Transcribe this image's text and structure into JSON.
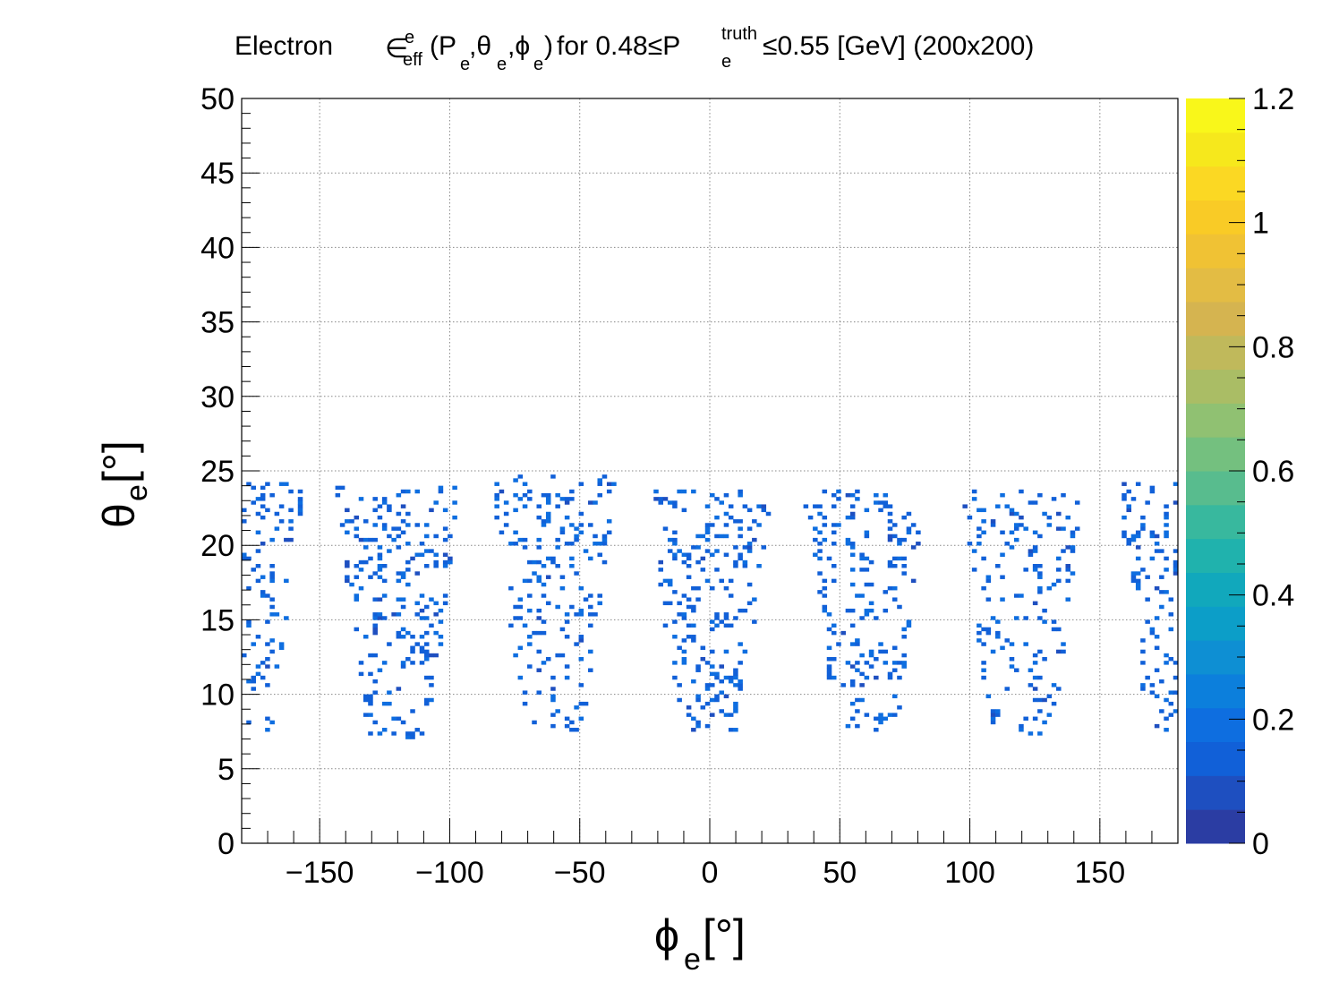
{
  "chart_data": {
    "type": "heatmap",
    "title": {
      "prefix": "Electron",
      "symbol": "∈",
      "sup1": "e",
      "sub1": "eff",
      "args_open": "(P",
      "args_sub_p": "e",
      "args_theta": ",θ",
      "args_sub_theta": "e",
      "args_phi": ",ϕ",
      "args_sub_phi": "e",
      "args_close": ")",
      "range_text": " for 0.48≤P",
      "range_sup": "truth",
      "range_sub": "e",
      "range_tail": "≤0.55 [GeV] (200x200)"
    },
    "xlabel": {
      "symbol": "ϕ",
      "sub": "e",
      "unit": " [°]"
    },
    "ylabel": {
      "symbol": "θ",
      "sub": "e",
      "unit": " [°]"
    },
    "xlim": [
      -180,
      180
    ],
    "ylim": [
      0,
      50
    ],
    "zlim": [
      0,
      1.2
    ],
    "bins": [
      200,
      200
    ],
    "grid": true,
    "x_ticks": [
      "−150",
      "−100",
      "−50",
      "0",
      "50",
      "100",
      "150"
    ],
    "x_tick_values": [
      -150,
      -100,
      -50,
      0,
      50,
      100,
      150
    ],
    "y_ticks": [
      "0",
      "5",
      "10",
      "15",
      "20",
      "25",
      "30",
      "35",
      "40",
      "45",
      "50"
    ],
    "y_tick_values": [
      0,
      5,
      10,
      15,
      20,
      25,
      30,
      35,
      40,
      45,
      50
    ],
    "z_ticks": [
      "0",
      "0.2",
      "0.4",
      "0.6",
      "0.8",
      "1",
      "1.2"
    ],
    "z_tick_values": [
      0,
      0.2,
      0.4,
      0.6,
      0.8,
      1.0,
      1.2
    ],
    "sectors": [
      {
        "phi_center": -120,
        "phi_halfwidth": 24,
        "theta_min": 7.0,
        "theta_max": 24.0
      },
      {
        "phi_center": -60,
        "phi_halfwidth": 24,
        "theta_min": 7.4,
        "theta_max": 24.7
      },
      {
        "phi_center": 0,
        "phi_halfwidth": 24,
        "theta_min": 7.4,
        "theta_max": 24.0
      },
      {
        "phi_center": 60,
        "phi_halfwidth": 24,
        "theta_min": 7.6,
        "theta_max": 23.8
      },
      {
        "phi_center": 120,
        "phi_halfwidth": 24,
        "theta_min": 7.2,
        "theta_max": 23.8
      },
      {
        "phi_center": 180,
        "phi_halfwidth": 24,
        "theta_min": 7.6,
        "theta_max": 24.2
      }
    ],
    "typical_efficiency": [
      0.1,
      0.2
    ],
    "palette": [
      "#2b3da3",
      "#1e4fc0",
      "#1160d8",
      "#0e6ee0",
      "#0c7fdc",
      "#0e8fd3",
      "#0c9ec8",
      "#11a8bc",
      "#20b2ad",
      "#38b89e",
      "#58bc8e",
      "#74c07f",
      "#90c172",
      "#aabd65",
      "#c0b95b",
      "#d5b450",
      "#e3bc44",
      "#f0c234",
      "#f9cb26",
      "#fbd823",
      "#f6e81c",
      "#f9f71a"
    ]
  }
}
